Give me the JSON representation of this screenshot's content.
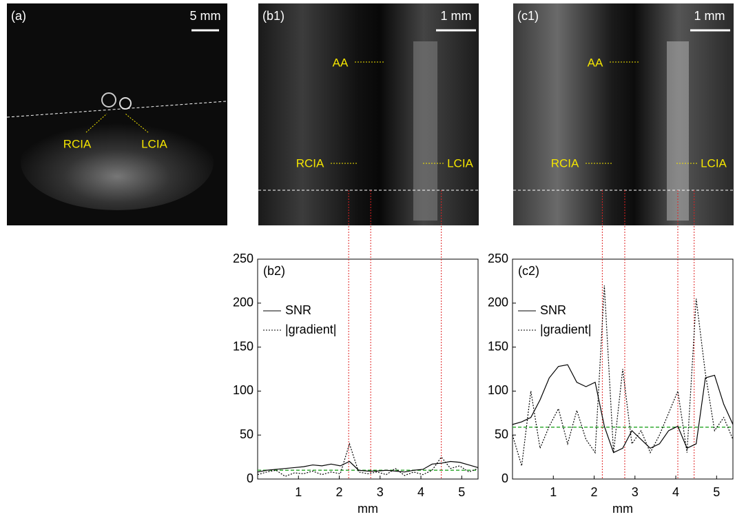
{
  "images": [
    {
      "label": "(a)",
      "scale": "5 mm",
      "annotations": [
        "RCIA",
        "LCIA"
      ]
    },
    {
      "label": "(b1)",
      "scale": "1 mm",
      "annotations": [
        "AA",
        "RCIA",
        "LCIA"
      ]
    },
    {
      "label": "(c1)",
      "scale": "1 mm",
      "annotations": [
        "AA",
        "RCIA",
        "LCIA"
      ]
    }
  ],
  "chart_data": [
    {
      "type": "line",
      "label": "(b2)",
      "xlabel": "mm",
      "x": [
        0,
        0.225,
        0.45,
        0.675,
        0.9,
        1.125,
        1.35,
        1.575,
        1.8,
        2.025,
        2.25,
        2.475,
        2.7,
        2.925,
        3.15,
        3.375,
        3.6,
        3.825,
        4.05,
        4.275,
        4.5,
        4.725,
        4.95,
        5.175,
        5.4
      ],
      "series": [
        {
          "name": "SNR",
          "color": "#000000",
          "dash": "solid",
          "values": [
            8,
            10,
            11,
            12,
            13,
            14,
            16,
            15,
            17,
            15,
            20,
            10,
            9,
            9,
            10,
            9,
            8,
            10,
            11,
            17,
            18,
            20,
            19,
            16,
            13
          ]
        },
        {
          "name": "|gradient|",
          "color": "#000000",
          "dash": "dotted",
          "values": [
            5,
            8,
            10,
            3,
            7,
            6,
            9,
            5,
            8,
            6,
            40,
            8,
            6,
            8,
            5,
            12,
            4,
            8,
            5,
            10,
            25,
            12,
            15,
            8,
            12
          ]
        }
      ],
      "reference_line": {
        "value": 10,
        "color": "#33aa33"
      },
      "guides_x": [
        2.23,
        2.77,
        4.5
      ],
      "guide_color": "#e02020",
      "xlim": [
        0,
        5.4
      ],
      "xticks": [
        1,
        2,
        3,
        4,
        5
      ],
      "ylim": [
        0,
        250
      ],
      "yticks": [
        0,
        50,
        100,
        150,
        200,
        250
      ]
    },
    {
      "type": "line",
      "label": "(c2)",
      "xlabel": "mm",
      "x": [
        0,
        0.225,
        0.45,
        0.675,
        0.9,
        1.125,
        1.35,
        1.575,
        1.8,
        2.025,
        2.25,
        2.475,
        2.7,
        2.925,
        3.15,
        3.375,
        3.6,
        3.825,
        4.05,
        4.275,
        4.5,
        4.725,
        4.95,
        5.175,
        5.4
      ],
      "series": [
        {
          "name": "SNR",
          "color": "#000000",
          "dash": "solid",
          "values": [
            62,
            65,
            70,
            90,
            115,
            128,
            130,
            110,
            105,
            110,
            60,
            30,
            35,
            55,
            45,
            35,
            40,
            55,
            60,
            35,
            40,
            115,
            118,
            85,
            62
          ]
        },
        {
          "name": "|gradient|",
          "color": "#000000",
          "dash": "dotted",
          "values": [
            50,
            15,
            100,
            35,
            60,
            80,
            40,
            78,
            45,
            30,
            220,
            30,
            125,
            40,
            55,
            30,
            50,
            75,
            100,
            30,
            205,
            120,
            55,
            70,
            45
          ]
        }
      ],
      "reference_line": {
        "value": 59,
        "color": "#33aa33"
      },
      "guides_x": [
        2.2,
        2.75,
        4.05,
        4.45
      ],
      "guide_color": "#e02020",
      "xlim": [
        0,
        5.4
      ],
      "xticks": [
        1,
        2,
        3,
        4,
        5
      ],
      "ylim": [
        0,
        250
      ],
      "yticks": [
        0,
        50,
        100,
        150,
        200,
        250
      ]
    }
  ]
}
